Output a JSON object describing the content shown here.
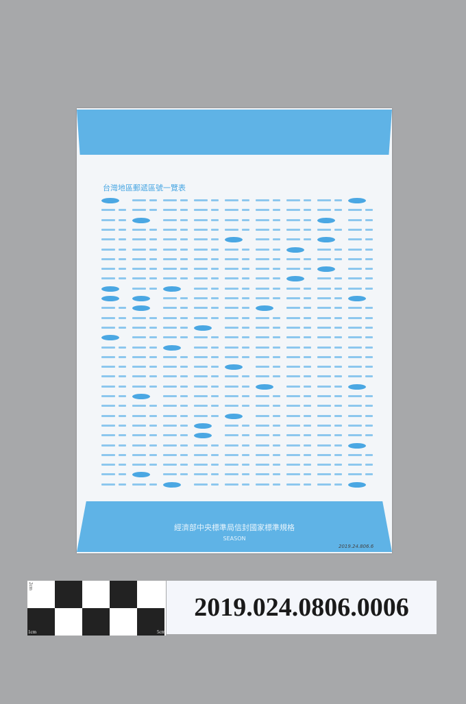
{
  "envelope": {
    "title": "台灣地區郵遞區號一覽表",
    "issuer": "經濟部中央標準局信封國家標準規格",
    "brand": "SEASON",
    "handwritten_note": "2019.24.806.6",
    "band_color": "#5fb3e6",
    "text_color": "#4aa7e3"
  },
  "scale_bar": {
    "label_top": "2cm",
    "label_left": "1cm",
    "label_right": "5cm"
  },
  "accession_number": "2019.024.0806.0006"
}
